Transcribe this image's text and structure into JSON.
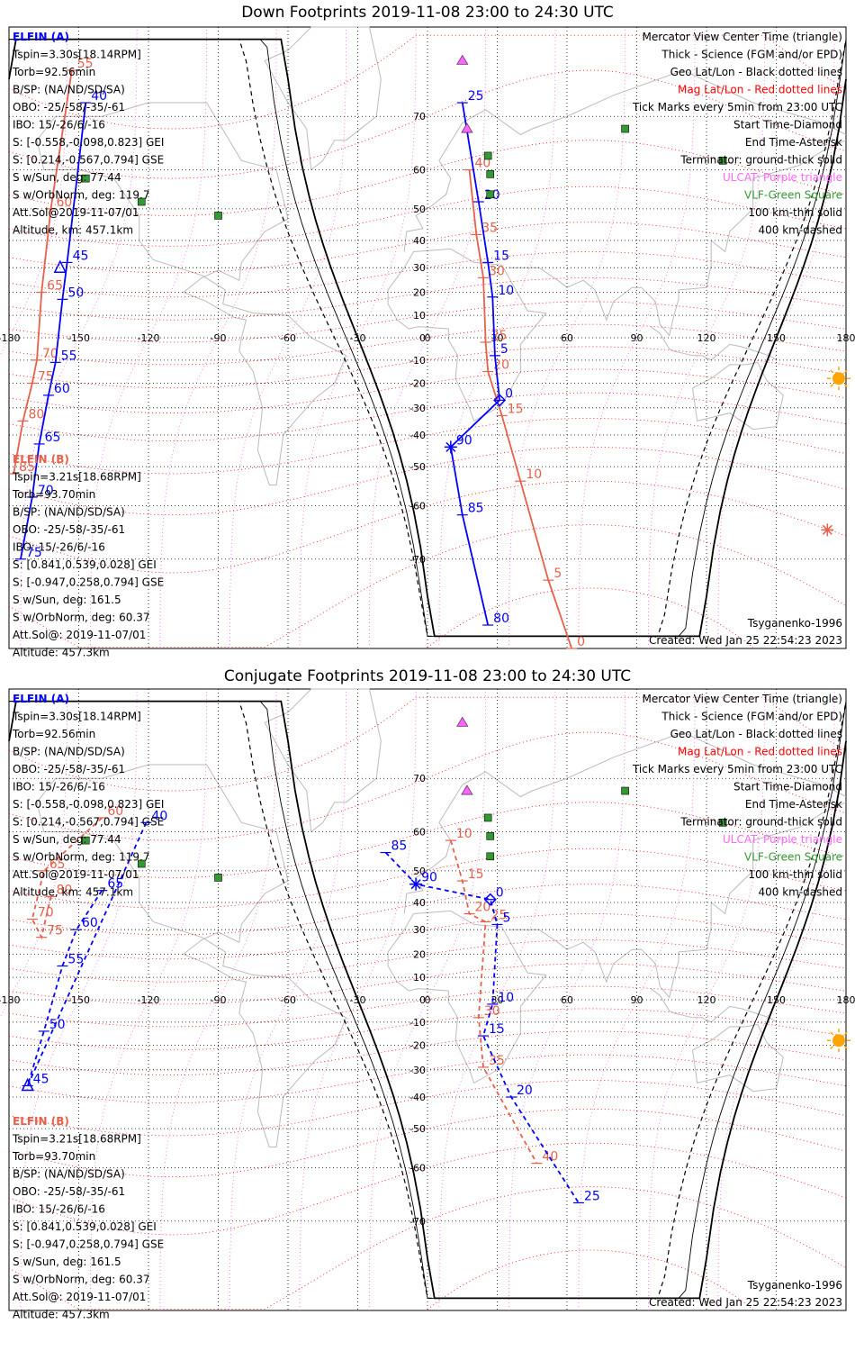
{
  "colors": {
    "elfin_a": "#0000ff",
    "elfin_b": "#e8604a",
    "mag_grid": "#ff0000",
    "geo_grid": "#000000",
    "terminator": "#000000",
    "coast": "#bbbbbb",
    "ulf": "#ff66ff",
    "vlf": "#339933",
    "sun": "#ffa500"
  },
  "legend": [
    "Mercator View Center Time (triangle)",
    "Thick - Science (FGM and/or EPD)",
    "Geo Lat/Lon - Black dotted lines",
    "Mag Lat/Lon - Red dotted lines",
    "Tick Marks every 5min from 23:00 UTC",
    "Start Time-Diamond",
    "End Time-Asterisk",
    "Terminator: ground-thick solid",
    "ULCAT: Purple triangle",
    "VLF-Green Square",
    "100 km-thin solid",
    "400 km-dashed"
  ],
  "legend_colors": [
    "#000",
    "#000",
    "#000",
    "#ff0000",
    "#000",
    "#000",
    "#000",
    "#000",
    "#ff66ff",
    "#339933",
    "#000",
    "#000"
  ],
  "elfin_a": {
    "name": "ELFIN (A)",
    "info": [
      "Tspin=3.30s[18.14RPM]",
      "Torb=92.56min",
      "B/SP: (NA/ND/SD/SA)",
      "OBO: -25/-58/-35/-61",
      "IBO: 15/-26/6/-16",
      "S: [-0.558,-0.098,0.823] GEI",
      "S: [0.214,-0.567,0.794] GSE",
      "S w/Sun, deg: 77.44",
      "S w/OrbNorm, deg: 119.7",
      "Att.Sol@2019-11-07/01",
      "Altitude, km: 457.1km"
    ]
  },
  "elfin_b": {
    "name": "ELFIN (B)",
    "info": [
      "Tspin=3.21s[18.68RPM]",
      "Torb=93.70min",
      "B/SP: (NA/ND/SD/SA)",
      "OBO: -25/-58/-35/-61",
      "IBO: 15/-26/6/-16",
      "S: [0.841,0.539,0.028] GEI",
      "S: [-0.947,0.258,0.794] GSE",
      "S w/Sun, deg: 161.5",
      "S w/OrbNorm, deg: 60.37",
      "Att.Sol@: 2019-11-07/01",
      "Altitude: 457.3km"
    ]
  },
  "model": "Tsyganenko-1996",
  "created": "Created: Wed Jan 25 22:54:23 2023",
  "chart_data": [
    {
      "type": "map",
      "title": "Down Footprints 2019-11-08 23:00 to 24:30 UTC",
      "projection": "Mercator",
      "xlim": [
        -180,
        180
      ],
      "ylim": [
        -80,
        80
      ],
      "lon_ticks": [
        -180,
        -150,
        -120,
        -90,
        -60,
        -30,
        0,
        30,
        60,
        90,
        120,
        150,
        180
      ],
      "lat_ticks": [
        -70,
        -60,
        -50,
        -40,
        -30,
        -20,
        -10,
        0,
        10,
        20,
        30,
        40,
        50,
        60,
        70
      ],
      "elfin_a_track": [
        {
          "min": 25,
          "lon": 15,
          "lat": 72
        },
        {
          "min": 20,
          "lon": 22,
          "lat": 52
        },
        {
          "min": 15,
          "lon": 26,
          "lat": 32
        },
        {
          "min": 10,
          "lon": 28,
          "lat": 18
        },
        {
          "min": 5,
          "lon": 29,
          "lat": -8
        },
        {
          "min": 0,
          "lon": 31,
          "lat": -27
        },
        {
          "min": 90,
          "lon": 10,
          "lat": -44
        },
        {
          "min": 85,
          "lon": 15,
          "lat": -62
        },
        {
          "min": 80,
          "lon": 26,
          "lat": -78
        }
      ],
      "elfin_a_track2": [
        {
          "min": 40,
          "lon": -147,
          "lat": 72
        },
        {
          "min": 45,
          "lon": -155,
          "lat": 32
        },
        {
          "min": 50,
          "lon": -157,
          "lat": 17
        },
        {
          "min": 55,
          "lon": -160,
          "lat": -11
        },
        {
          "min": 60,
          "lon": -163,
          "lat": -25
        },
        {
          "min": 65,
          "lon": -167,
          "lat": -43
        },
        {
          "min": 70,
          "lon": -170,
          "lat": -58
        },
        {
          "min": 75,
          "lon": -175,
          "lat": -70
        }
      ],
      "elfin_b_track": [
        {
          "min": 40,
          "lon": 18,
          "lat": 60
        },
        {
          "min": 35,
          "lon": 21,
          "lat": 42
        },
        {
          "min": 30,
          "lon": 24,
          "lat": 26
        },
        {
          "min": 25,
          "lon": 25,
          "lat": -2
        },
        {
          "min": 20,
          "lon": 26,
          "lat": -15
        },
        {
          "min": 15,
          "lon": 32,
          "lat": -33
        },
        {
          "min": 10,
          "lon": 40,
          "lat": -54
        },
        {
          "min": 5,
          "lon": 52,
          "lat": -73
        },
        {
          "min": 0,
          "lon": 62,
          "lat": -80
        }
      ],
      "elfin_b_track2": [
        {
          "min": 55,
          "lon": -153,
          "lat": 76
        },
        {
          "min": 60,
          "lon": -162,
          "lat": 50
        },
        {
          "min": 65,
          "lon": -166,
          "lat": 20
        },
        {
          "min": 70,
          "lon": -168,
          "lat": -10
        },
        {
          "min": 75,
          "lon": -170,
          "lat": -20
        },
        {
          "min": 80,
          "lon": -174,
          "lat": -35
        },
        {
          "min": 85,
          "lon": -178,
          "lat": -52
        }
      ],
      "markers": [
        {
          "kind": "diamond",
          "series": "elfin_a",
          "lon": 31,
          "lat": -27
        },
        {
          "kind": "asterisk",
          "series": "elfin_a",
          "lon": 10,
          "lat": -44
        },
        {
          "kind": "triangle",
          "series": "elfin_a",
          "lon": -158,
          "lat": 30
        },
        {
          "kind": "asterisk",
          "series": "elfin_b",
          "lon": 172,
          "lat": -65
        }
      ]
    },
    {
      "type": "map",
      "title": "Conjugate Footprints 2019-11-08 23:00 to 24:30 UTC",
      "projection": "Mercator",
      "xlim": [
        -180,
        180
      ],
      "ylim": [
        -80,
        80
      ],
      "lon_ticks": [
        -180,
        -150,
        -120,
        -90,
        -60,
        -30,
        0,
        30,
        60,
        90,
        120,
        150,
        180
      ],
      "lat_ticks": [
        -70,
        -60,
        -50,
        -40,
        -30,
        -20,
        -10,
        0,
        10,
        20,
        30,
        40,
        50,
        60,
        70
      ],
      "elfin_a_track": [
        {
          "min": 85,
          "lon": -18,
          "lat": 55
        },
        {
          "min": 90,
          "lon": -5,
          "lat": 46
        },
        {
          "min": 0,
          "lon": 27,
          "lat": 41
        },
        {
          "min": 5,
          "lon": 30,
          "lat": 32
        },
        {
          "min": 10,
          "lon": 28,
          "lat": -2
        },
        {
          "min": 15,
          "lon": 24,
          "lat": -16
        },
        {
          "min": 20,
          "lon": 36,
          "lat": -40
        },
        {
          "min": 25,
          "lon": 65,
          "lat": -67
        }
      ],
      "elfin_a_track2": [
        {
          "min": 40,
          "lon": -121,
          "lat": 62
        },
        {
          "min": 45,
          "lon": -172,
          "lat": -36
        },
        {
          "min": 50,
          "lon": -165,
          "lat": -14
        },
        {
          "min": 55,
          "lon": -157,
          "lat": 15
        },
        {
          "min": 60,
          "lon": -151,
          "lat": 30
        },
        {
          "min": 65,
          "lon": -140,
          "lat": 44
        }
      ],
      "elfin_b_track": [
        {
          "min": 10,
          "lon": 10,
          "lat": 58
        },
        {
          "min": 15,
          "lon": 15,
          "lat": 47
        },
        {
          "min": 20,
          "lon": 18,
          "lat": 36
        },
        {
          "min": 25,
          "lon": 25,
          "lat": 33
        },
        {
          "min": 30,
          "lon": 22,
          "lat": -8
        },
        {
          "min": 35,
          "lon": 24,
          "lat": -29
        },
        {
          "min": 40,
          "lon": 47,
          "lat": -59
        }
      ],
      "elfin_b_track2": [
        {
          "min": 60,
          "lon": -140,
          "lat": 63
        },
        {
          "min": 65,
          "lon": -165,
          "lat": 50
        },
        {
          "min": 70,
          "lon": -170,
          "lat": 34
        },
        {
          "min": 75,
          "lon": -166,
          "lat": 27
        },
        {
          "min": 80,
          "lon": -162,
          "lat": 42
        }
      ],
      "markers": [
        {
          "kind": "diamond",
          "series": "elfin_a",
          "lon": 27,
          "lat": 41
        },
        {
          "kind": "asterisk",
          "series": "elfin_a",
          "lon": -5,
          "lat": 46
        },
        {
          "kind": "triangle",
          "series": "elfin_a",
          "lon": -172,
          "lat": -36
        }
      ]
    }
  ]
}
